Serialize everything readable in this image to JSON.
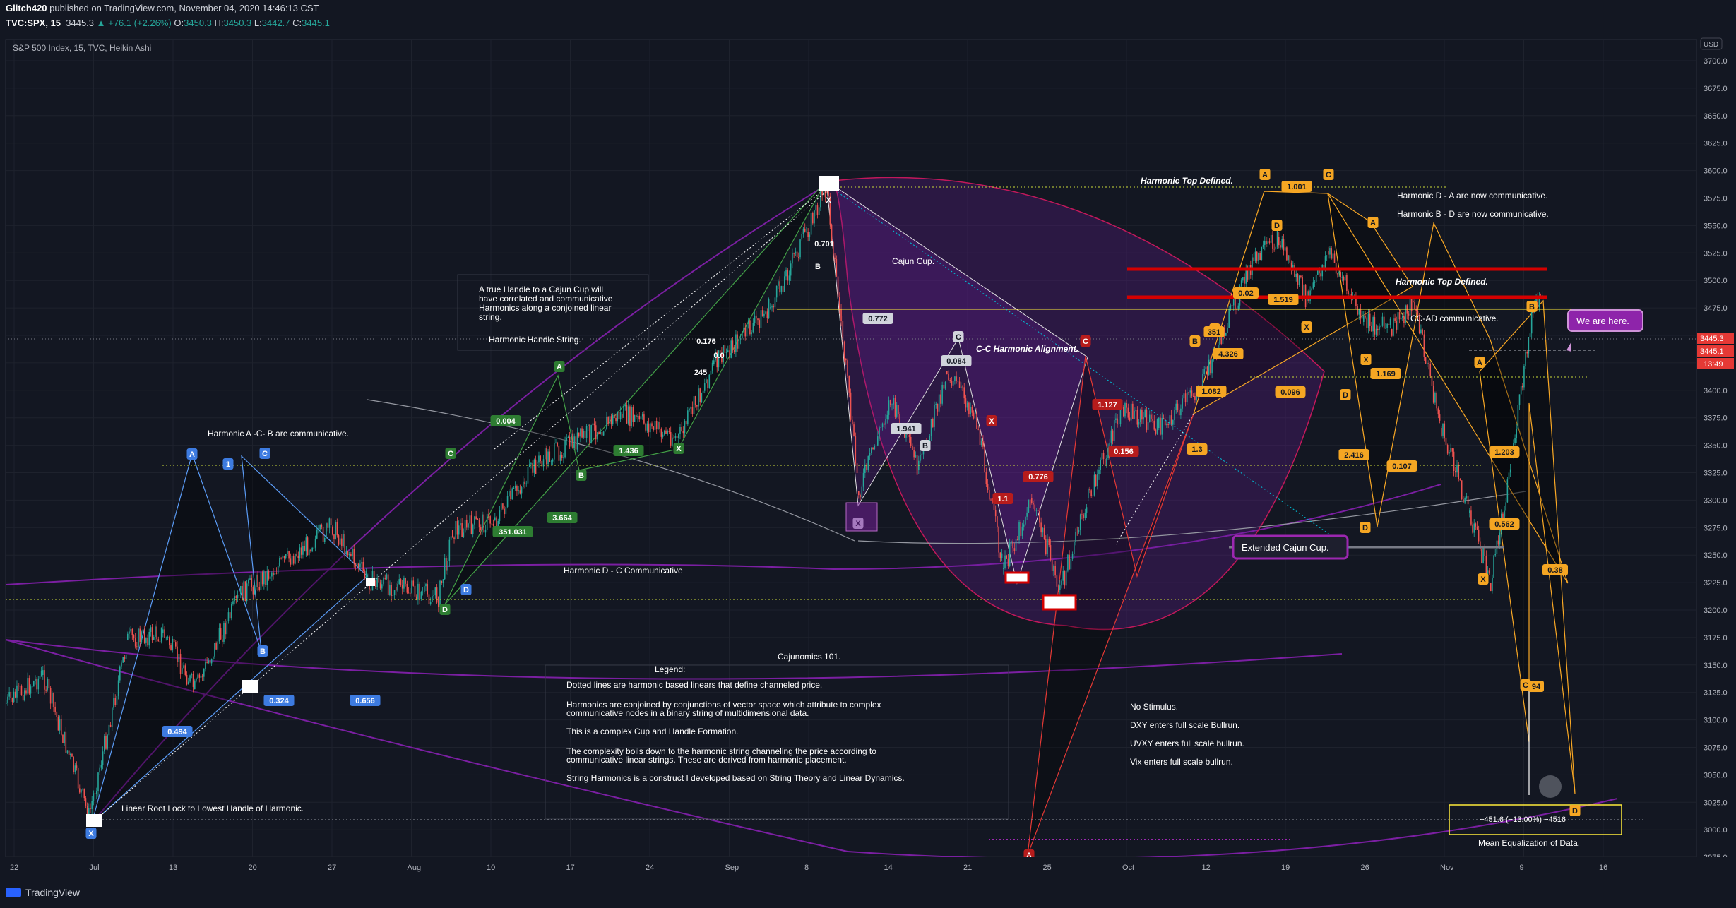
{
  "header": {
    "author": "Glitch420",
    "published": "published on TradingView.com, November 04, 2020 14:46:13 CST",
    "symbol": "TVC:SPX, 15",
    "last": "3445.3",
    "change": "▲ +76.1 (+2.26%)",
    "o_label": "O:",
    "o": "3450.3",
    "h_label": "H:",
    "h": "3450.3",
    "l_label": "L:",
    "l": "3442.7",
    "c_label": "C:",
    "c": "3445.1"
  },
  "chart": {
    "legend_title": "S&P 500 Index, 15, TVC, Heikin Ashi",
    "currency": "USD",
    "price_ticks": [
      "3700.0",
      "3675.0",
      "3650.0",
      "3625.0",
      "3600.0",
      "3575.0",
      "3550.0",
      "3525.0",
      "3500.0",
      "3475.0",
      "3450.0",
      "3425.0",
      "3400.0",
      "3375.0",
      "3350.0",
      "3325.0",
      "3300.0",
      "3275.0",
      "3250.0",
      "3225.0",
      "3200.0",
      "3175.0",
      "3150.0",
      "3125.0",
      "3100.0",
      "3075.0",
      "3050.0",
      "3025.0",
      "3000.0",
      "2975.0"
    ],
    "time_ticks": [
      "22",
      "Jul",
      "13",
      "20",
      "27",
      "Aug",
      "10",
      "17",
      "24",
      "Sep",
      "8",
      "14",
      "21",
      "25",
      "Oct",
      "12",
      "19",
      "26",
      "Nov",
      "9",
      "16"
    ],
    "price_tags": {
      "green": "3445.3",
      "red": "3445.1",
      "timer": "13:49"
    },
    "annotations": {
      "handle_note": "A true Handle to a Cajun Cup will have correlated and communicative Harmonics along a conjoined linear string.",
      "handle_string": "Harmonic Handle String.",
      "harmonic_acb": "Harmonic A -C- B are communicative.",
      "harmonic_dc": "Harmonic D - C Communicative",
      "root_lock": "Linear Root Lock to Lowest Handle of Harmonic.",
      "cajun_cup": "Cajun Cup.",
      "cc_alignment": "C-C Harmonic Alignment.",
      "top_defined_1": "Harmonic Top Defined.",
      "top_defined_2": "Harmonic Top Defined.",
      "da_comm": "Harmonic D - A are now communicative.",
      "bd_comm": "Harmonic B - D are now communicative.",
      "ccad": "CC-AD communicative.",
      "we_are_here": "We are here.",
      "extended_cup": "Extended Cajun Cup.",
      "cajunomics": "Cajunomics 101.",
      "legend_heading": "Legend:",
      "legend_lines": [
        "Dotted lines are harmonic based linears that define channeled price.",
        "Harmonics are conjoined by conjunctions of vector space which attribute to complex",
        "communicative nodes in a binary string of multidimensional data.",
        "This is a complex Cup and Handle Formation.",
        "The complexity boils down to the harmonic string channeling the price according to",
        "communicative linear strings. These are derived from harmonic placement.",
        "String Harmonics is a construct I developed based on String Theory and Linear Dynamics."
      ],
      "stimulus_lines": [
        "No Stimulus.",
        "DXY enters full scale Bullrun.",
        "UVXY enters full scale bullrun.",
        "Vix enters full scale bullrun."
      ],
      "measure": "−451.6 (−13.00%) −4516",
      "mean_eq": "Mean Equalization of Data."
    },
    "labels": {
      "blue": [
        "A",
        "1",
        "C",
        "B",
        "D",
        "0.656",
        "0.494",
        "0.324",
        "X"
      ],
      "green": [
        "C",
        "A",
        "B",
        "D",
        "X",
        "0.004",
        "1.436",
        "3.664",
        "351.031"
      ],
      "white": [
        "0.176",
        "0.0",
        "245",
        "0.701",
        "B",
        "X"
      ],
      "purple_cup": [
        "0.772",
        "C",
        "0.084",
        "1.941",
        "B",
        "X"
      ],
      "red": [
        "C",
        "1.127",
        "0.156",
        "0.776",
        "1.1",
        "A",
        "X"
      ],
      "orange": [
        "A",
        "C",
        "D",
        "1.001",
        "1.519",
        "0.02",
        "C",
        "4.326",
        "B",
        "351",
        "0.096",
        "X",
        "1.082",
        "1.3",
        "X",
        "1.169",
        "D",
        "A",
        "2.416",
        "0.107",
        "D",
        "A",
        "1.203",
        "0.562",
        "X",
        "0.38",
        "C",
        "94",
        "D",
        "B"
      ]
    }
  }
}
